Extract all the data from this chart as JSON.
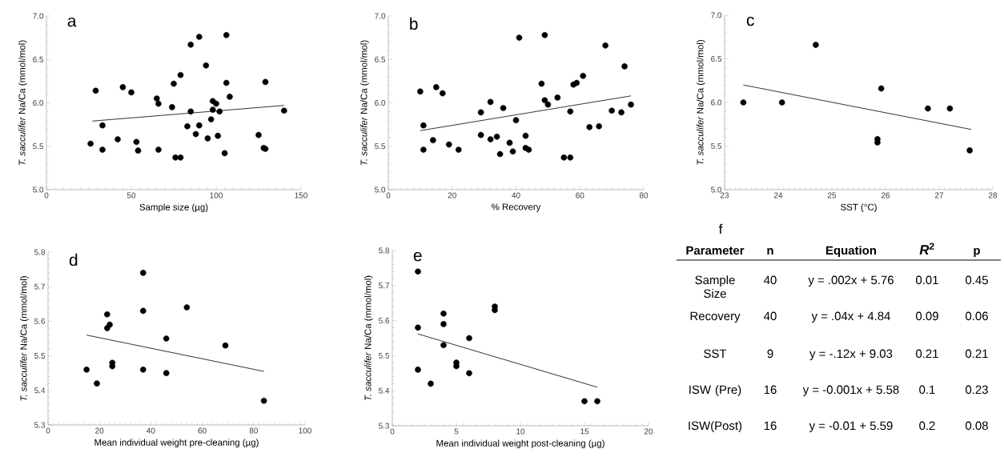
{
  "chart_data": [
    {
      "type": "scatter",
      "title": "a",
      "xlabel": "Sample size (µg)",
      "ylabel": "*T. sacculifer* Na/Ca (mmol/mol)",
      "xlim": [
        0,
        150
      ],
      "ylim": [
        5,
        7
      ],
      "xticks": [
        0,
        50,
        100,
        150
      ],
      "yticks": [
        {
          "value": 5,
          "label": "5.0"
        },
        5.5,
        {
          "value": 6,
          "label": "6.0"
        },
        6.5,
        {
          "value": 7,
          "label": "7.0"
        }
      ],
      "series": [
        {
          "marker": "circle",
          "color": "#000000",
          "x": [
            26,
            29,
            33,
            33,
            42,
            45,
            50,
            53,
            54,
            65,
            66,
            66,
            74,
            75,
            76,
            79,
            79,
            83,
            85,
            85,
            88,
            90,
            90,
            94,
            95,
            97,
            98,
            98,
            100,
            101,
            102,
            105,
            106,
            106,
            108,
            125,
            128,
            129,
            129,
            140
          ],
          "values": [
            5.53,
            6.14,
            5.74,
            5.46,
            5.58,
            6.18,
            6.12,
            5.55,
            5.45,
            6.05,
            5.99,
            5.46,
            5.95,
            6.22,
            5.37,
            6.32,
            5.37,
            5.73,
            6.67,
            5.9,
            5.64,
            5.74,
            6.76,
            6.43,
            5.59,
            5.81,
            6.02,
            5.92,
            5.99,
            5.62,
            5.9,
            5.42,
            6.23,
            6.78,
            6.07,
            5.63,
            5.48,
            5.47,
            6.24,
            5.91
          ]
        },
        {
          "type": "line",
          "marker": "none",
          "color": "#000000",
          "x": [
            27,
            140
          ],
          "values": [
            5.79,
            5.97
          ]
        }
      ]
    },
    {
      "type": "scatter",
      "title": "b",
      "xlabel": "% Recovery",
      "ylabel": "*T. sacculifer* Na/Ca (mmol/mol)",
      "xlim": [
        0,
        80
      ],
      "ylim": [
        5,
        7
      ],
      "xticks": [
        0,
        20,
        40,
        60,
        80
      ],
      "yticks": [
        {
          "value": 5,
          "label": "5.0"
        },
        5.5,
        {
          "value": 6,
          "label": "6.0"
        },
        6.5,
        {
          "value": 7,
          "label": "7.0"
        }
      ],
      "series": [
        {
          "marker": "circle",
          "color": "#000000",
          "x": [
            10,
            11,
            11,
            14,
            15,
            17,
            19,
            22,
            29,
            29,
            32,
            32,
            34,
            35,
            36,
            38,
            39,
            40,
            41,
            43,
            43,
            44,
            48,
            49,
            49,
            50,
            53,
            55,
            57,
            57,
            58,
            59,
            61,
            63,
            66,
            68,
            70,
            73,
            74,
            76
          ],
          "values": [
            6.13,
            5.74,
            5.46,
            5.57,
            6.18,
            6.11,
            5.52,
            5.46,
            5.89,
            5.63,
            6.01,
            5.58,
            5.61,
            5.41,
            5.94,
            5.54,
            5.44,
            5.8,
            6.75,
            5.62,
            5.48,
            5.46,
            6.22,
            6.78,
            6.03,
            5.98,
            6.06,
            5.37,
            5.37,
            5.9,
            6.21,
            6.23,
            6.31,
            5.72,
            5.73,
            6.66,
            5.91,
            5.89,
            6.42,
            5.98
          ]
        },
        {
          "type": "line",
          "marker": "none",
          "color": "#000000",
          "x": [
            10,
            76
          ],
          "values": [
            5.68,
            6.08
          ]
        }
      ]
    },
    {
      "type": "scatter",
      "title": "c",
      "xlabel": "SST (°C)",
      "ylabel": "*T. sacculifer* Na/Ca (mmol/mol)",
      "xlim": [
        23,
        28
      ],
      "ylim": [
        5,
        7
      ],
      "xticks": [
        23,
        24,
        25,
        26,
        27,
        28
      ],
      "yticks": [
        {
          "value": 5,
          "label": "5.0"
        },
        5.5,
        {
          "value": 6,
          "label": "6.0"
        },
        6.5,
        {
          "value": 7,
          "label": "7.0"
        }
      ],
      "series": [
        {
          "marker": "circle",
          "color": "#000000",
          "x": [
            23.35,
            24.07,
            24.7,
            25.85,
            25.85,
            25.92,
            26.79,
            27.2,
            27.57
          ],
          "values": [
            6.0,
            6.0,
            6.66,
            5.58,
            5.54,
            6.16,
            5.93,
            5.93,
            5.45
          ]
        },
        {
          "type": "line",
          "marker": "none",
          "color": "#000000",
          "x": [
            23.35,
            27.6
          ],
          "values": [
            6.2,
            5.69
          ]
        }
      ]
    },
    {
      "type": "scatter",
      "title": "d",
      "xlabel": "Mean individual weight pre-cleaning (µg)",
      "ylabel": "*T. sacculifer* Na/Ca (mmol/mol)",
      "xlim": [
        0,
        100
      ],
      "ylim": [
        5.3,
        5.8
      ],
      "xticks": [
        0,
        20,
        40,
        60,
        80,
        100
      ],
      "yticks": [
        5.3,
        5.4,
        5.5,
        5.6,
        5.7,
        5.8
      ],
      "series": [
        {
          "marker": "circle",
          "color": "#000000",
          "x": [
            15,
            19,
            23,
            23,
            24,
            25,
            25,
            37,
            37,
            37,
            46,
            46,
            54,
            69,
            84
          ],
          "values": [
            5.46,
            5.42,
            5.62,
            5.58,
            5.59,
            5.48,
            5.47,
            5.74,
            5.63,
            5.46,
            5.55,
            5.45,
            5.64,
            5.53,
            5.37
          ]
        },
        {
          "type": "line",
          "marker": "none",
          "color": "#000000",
          "x": [
            15,
            84
          ],
          "values": [
            5.56,
            5.455
          ]
        }
      ]
    },
    {
      "type": "scatter",
      "title": "e",
      "xlabel": "Mean individual weight post-cleaning (µg)",
      "ylabel": "*T. sacculifer* Na/Ca (mmol/mol)",
      "xlim": [
        0,
        20
      ],
      "ylim": [
        5.3,
        5.8
      ],
      "xticks": [
        0,
        5,
        10,
        15,
        20
      ],
      "yticks": [
        5.3,
        5.4,
        5.5,
        5.6,
        5.7,
        5.8
      ],
      "series": [
        {
          "marker": "circle",
          "color": "#000000",
          "x": [
            2,
            2,
            2,
            3,
            4,
            4,
            4,
            5,
            5,
            6,
            6,
            8,
            8,
            15,
            16
          ],
          "values": [
            5.74,
            5.58,
            5.46,
            5.42,
            5.62,
            5.59,
            5.53,
            5.48,
            5.47,
            5.55,
            5.45,
            5.64,
            5.63,
            5.37,
            5.37
          ]
        },
        {
          "type": "line",
          "marker": "none",
          "color": "#000000",
          "x": [
            2,
            16
          ],
          "values": [
            5.562,
            5.41
          ]
        }
      ]
    },
    {
      "type": "other",
      "title": "f",
      "annotations": [
        "Parameter",
        "n",
        "Equation",
        "*R*$^{2}$",
        "p",
        "Sample Size",
        "40",
        "y = .002x + 5.76",
        "0.01",
        "0.45",
        "Recovery",
        "40",
        "y = .04x + 4.84",
        "0.09",
        "0.06",
        "SST",
        "9",
        "y = -.12x + 9.03",
        "0.21",
        "0.21",
        "ISW (Pre)",
        "16",
        "y = -0.001x + 5.58",
        "0.1",
        "0.23",
        "ISW(Post)",
        "16",
        "y = -0.01 + 5.59",
        "0.2",
        "0.08"
      ]
    }
  ]
}
